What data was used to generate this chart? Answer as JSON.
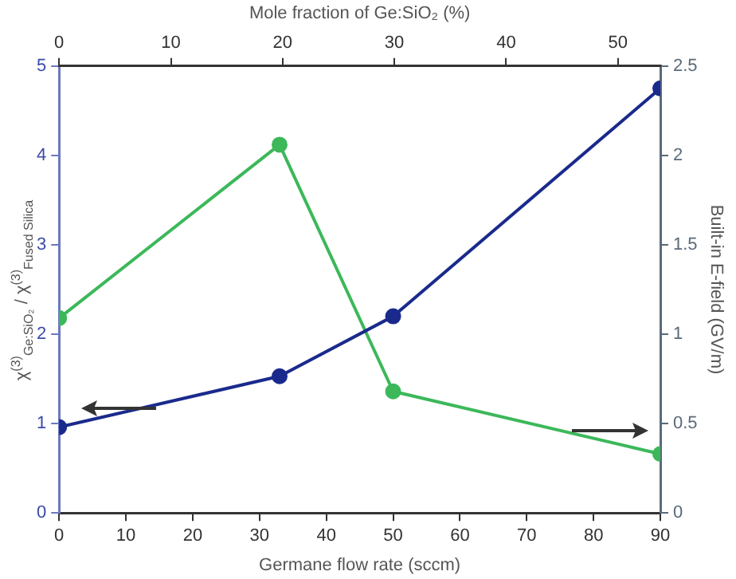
{
  "chart_data": {
    "type": "line",
    "xlabel": "Germane flow rate (sccm)",
    "x2label": "Mole fraction of Ge:SiO₂ (%)",
    "ylabel": "χ$^{(3)}$$_{Ge:SiO₂}$ / χ$^{(3)}$$_{Fused Silica}$",
    "y2label": "Built-in E-field (GV/m)",
    "x": [
      0,
      33,
      50,
      90
    ],
    "xlim": [
      0,
      90
    ],
    "xticks": [
      0,
      10,
      20,
      30,
      40,
      50,
      60,
      70,
      80,
      90
    ],
    "x2lim": [
      0,
      53.8
    ],
    "x2ticks": [
      0,
      10,
      20,
      30,
      40,
      50
    ],
    "ylim": [
      0,
      5
    ],
    "yticks": [
      0,
      1,
      2,
      3,
      4,
      5
    ],
    "y2lim": [
      0,
      2.5
    ],
    "y2ticks": [
      0,
      0.5,
      1,
      1.5,
      2,
      2.5
    ],
    "series": [
      {
        "color": "#1a2a8c",
        "values": [
          0.96,
          1.53,
          2.2,
          4.75
        ]
      },
      {
        "color": "#3cb85a",
        "values": [
          1.09,
          2.06,
          0.68,
          0.33
        ],
        "axis": "y2"
      }
    ],
    "marker": "circle",
    "line_style": "solid",
    "grid": false,
    "legend": false
  }
}
